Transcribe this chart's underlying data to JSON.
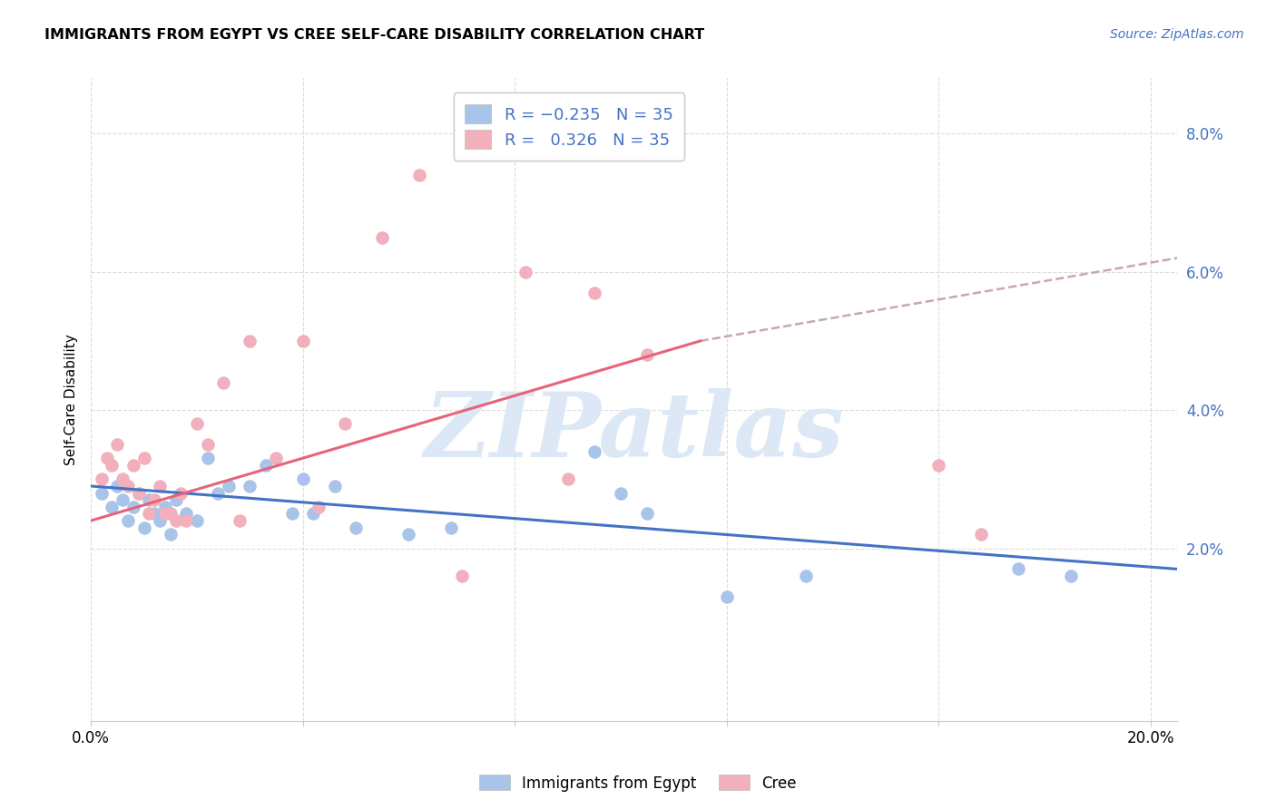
{
  "title": "IMMIGRANTS FROM EGYPT VS CREE SELF-CARE DISABILITY CORRELATION CHART",
  "source": "Source: ZipAtlas.com",
  "ylabel": "Self-Care Disability",
  "xlim": [
    0.0,
    0.205
  ],
  "ylim": [
    -0.005,
    0.088
  ],
  "yticks": [
    0.02,
    0.04,
    0.06,
    0.08
  ],
  "ytick_labels": [
    "2.0%",
    "4.0%",
    "6.0%",
    "8.0%"
  ],
  "xticks": [
    0.0,
    0.04,
    0.08,
    0.12,
    0.16,
    0.2
  ],
  "xtick_labels_show": [
    "0.0%",
    "",
    "",
    "",
    "",
    "20.0%"
  ],
  "color_blue": "#a8c4e8",
  "color_pink": "#f2b0bc",
  "color_line_blue": "#4472c4",
  "color_line_pink": "#e8637a",
  "color_dashed": "#c8a8b0",
  "watermark": "ZIPatlas",
  "watermark_color": "#dce8f5",
  "blue_scatter_x": [
    0.002,
    0.004,
    0.005,
    0.006,
    0.007,
    0.008,
    0.009,
    0.01,
    0.011,
    0.012,
    0.013,
    0.014,
    0.015,
    0.016,
    0.018,
    0.02,
    0.022,
    0.024,
    0.026,
    0.03,
    0.033,
    0.038,
    0.04,
    0.042,
    0.046,
    0.05,
    0.06,
    0.068,
    0.095,
    0.1,
    0.105,
    0.12,
    0.135,
    0.175,
    0.185
  ],
  "blue_scatter_y": [
    0.028,
    0.026,
    0.029,
    0.027,
    0.024,
    0.026,
    0.028,
    0.023,
    0.027,
    0.025,
    0.024,
    0.026,
    0.022,
    0.027,
    0.025,
    0.024,
    0.033,
    0.028,
    0.029,
    0.029,
    0.032,
    0.025,
    0.03,
    0.025,
    0.029,
    0.023,
    0.022,
    0.023,
    0.034,
    0.028,
    0.025,
    0.013,
    0.016,
    0.017,
    0.016
  ],
  "pink_scatter_x": [
    0.002,
    0.003,
    0.004,
    0.005,
    0.006,
    0.007,
    0.008,
    0.009,
    0.01,
    0.011,
    0.012,
    0.013,
    0.014,
    0.015,
    0.016,
    0.017,
    0.018,
    0.02,
    0.022,
    0.025,
    0.028,
    0.03,
    0.035,
    0.04,
    0.043,
    0.048,
    0.055,
    0.062,
    0.07,
    0.082,
    0.09,
    0.095,
    0.105,
    0.16,
    0.168
  ],
  "pink_scatter_y": [
    0.03,
    0.033,
    0.032,
    0.035,
    0.03,
    0.029,
    0.032,
    0.028,
    0.033,
    0.025,
    0.027,
    0.029,
    0.025,
    0.025,
    0.024,
    0.028,
    0.024,
    0.038,
    0.035,
    0.044,
    0.024,
    0.05,
    0.033,
    0.05,
    0.026,
    0.038,
    0.065,
    0.074,
    0.016,
    0.06,
    0.03,
    0.057,
    0.048,
    0.032,
    0.022
  ],
  "blue_line_x": [
    0.0,
    0.205
  ],
  "blue_line_y": [
    0.029,
    0.017
  ],
  "pink_line_x": [
    0.0,
    0.115
  ],
  "pink_line_y": [
    0.024,
    0.05
  ],
  "dashed_line_x": [
    0.115,
    0.205
  ],
  "dashed_line_y": [
    0.05,
    0.062
  ]
}
